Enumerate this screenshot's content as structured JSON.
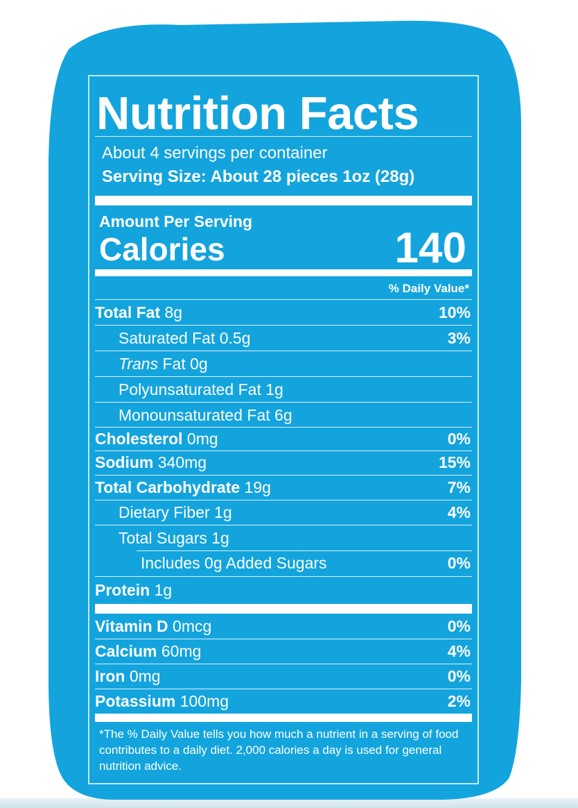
{
  "label": {
    "title": "Nutrition Facts",
    "servings_per_container": "About 4 servings per container",
    "serving_size": "Serving Size: About 28 pieces 1oz (28g)",
    "amount_per_serving": "Amount Per Serving",
    "calories_label": "Calories",
    "calories_value": "140",
    "daily_value_header": "% Daily Value*",
    "nutrients": [
      {
        "name": "Total Fat",
        "amount": " 8g",
        "pct": "10%"
      },
      {
        "name": "Saturated Fat 0.5g",
        "amount": "",
        "pct": "3%"
      },
      {
        "name": "Trans",
        "amount": " Fat 0g",
        "pct": ""
      },
      {
        "name": "Polyunsaturated Fat 1g",
        "amount": "",
        "pct": ""
      },
      {
        "name": "Monounsaturated Fat 6g",
        "amount": "",
        "pct": ""
      },
      {
        "name": "Cholesterol",
        "amount": " 0mg",
        "pct": "0%"
      },
      {
        "name": "Sodium",
        "amount": " 340mg",
        "pct": "15%"
      },
      {
        "name": "Total Carbohydrate",
        "amount": " 19g",
        "pct": "7%"
      },
      {
        "name": "Dietary Fiber 1g",
        "amount": "",
        "pct": "4%"
      },
      {
        "name": "Total Sugars 1g",
        "amount": "",
        "pct": ""
      },
      {
        "name": "Includes 0g Added Sugars",
        "amount": "",
        "pct": "0%"
      },
      {
        "name": "Protein",
        "amount": " 1g",
        "pct": ""
      }
    ],
    "vitamins": [
      {
        "name": "Vitamin D",
        "amount": " 0mcg",
        "pct": "0%"
      },
      {
        "name": "Calcium",
        "amount": " 60mg",
        "pct": "4%"
      },
      {
        "name": "Iron",
        "amount": " 0mg",
        "pct": "0%"
      },
      {
        "name": "Potassium",
        "amount": " 100mg",
        "pct": "2%"
      }
    ],
    "footnote": "*The % Daily Value tells you how much a nutrient in a serving of food contributes to a daily diet. 2,000 calories a day is used for general nutrition advice."
  },
  "colors": {
    "background": "#13a4dd",
    "text": "#ffffff"
  }
}
